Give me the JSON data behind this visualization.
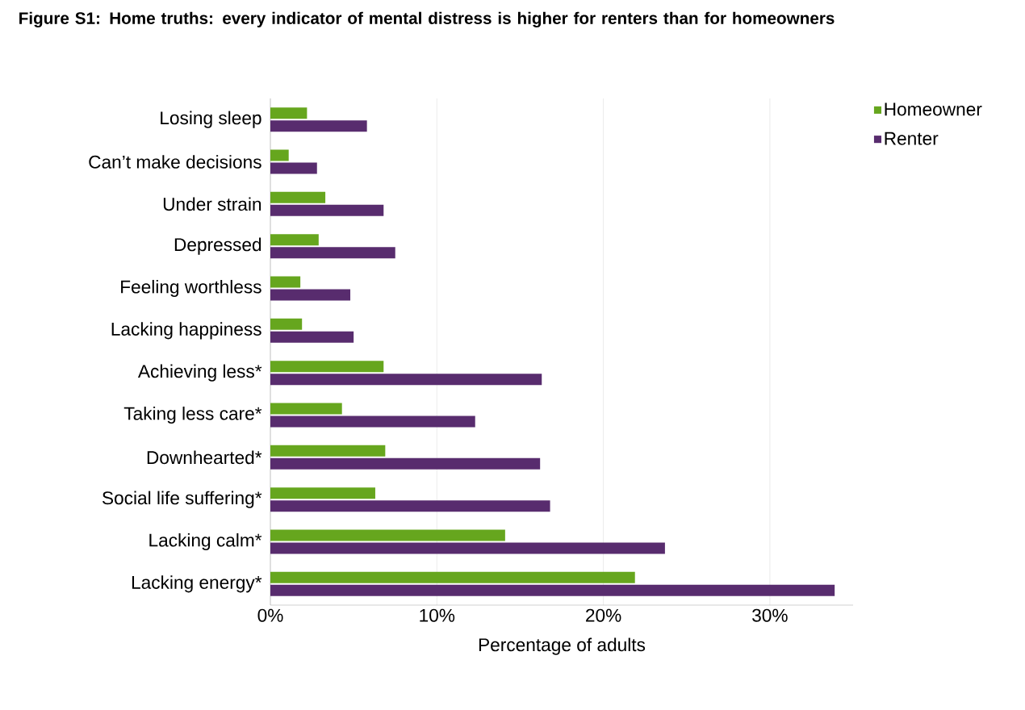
{
  "chart_data": {
    "type": "bar",
    "orientation": "horizontal",
    "title": "Figure S1: Home truths: every indicator of mental distress is higher for renters than for homeowners",
    "xlabel": "Percentage of adults",
    "categories": [
      "Losing sleep",
      "Can’t make decisions",
      "Under strain",
      "Depressed",
      "Feeling worthless",
      "Lacking happiness",
      "Achieving less*",
      "Taking less care*",
      "Downhearted*",
      "Social life suffering*",
      "Lacking calm*",
      "Lacking energy*"
    ],
    "series": [
      {
        "name": "Homeowner",
        "color": "#66a61e",
        "values": [
          2.2,
          1.1,
          3.3,
          2.9,
          1.8,
          1.9,
          6.8,
          4.3,
          6.9,
          6.3,
          14.1,
          21.9
        ]
      },
      {
        "name": "Renter",
        "color": "#582c6e",
        "values": [
          5.8,
          2.8,
          6.8,
          7.5,
          4.8,
          5.0,
          16.3,
          12.3,
          16.2,
          16.8,
          23.7,
          33.9
        ]
      }
    ],
    "xlim": [
      0,
      35
    ],
    "xticks": [
      {
        "value": 0,
        "label": "0%"
      },
      {
        "value": 10,
        "label": "10%"
      },
      {
        "value": 20,
        "label": "20%"
      },
      {
        "value": 30,
        "label": "30%"
      }
    ],
    "grid": "x",
    "legend": "top right"
  }
}
